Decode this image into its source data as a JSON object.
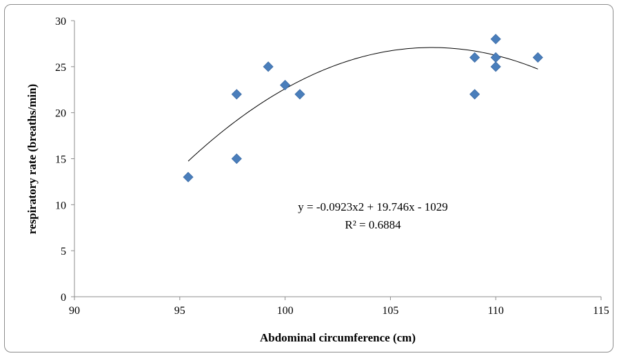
{
  "chart_data": {
    "type": "scatter",
    "title": "",
    "xlabel": "Abdominal circumference (cm)",
    "ylabel": "respiratory rate (breaths/min)",
    "xlim": [
      90,
      115
    ],
    "ylim": [
      0,
      30
    ],
    "x_ticks": [
      "90",
      "95",
      "100",
      "105",
      "110",
      "115"
    ],
    "y_ticks": [
      "0",
      "5",
      "10",
      "15",
      "20",
      "25",
      "30"
    ],
    "grid": false,
    "series": [
      {
        "marker": "diamond",
        "color": "#4a7ebb",
        "points": [
          {
            "x": 95.4,
            "y": 13
          },
          {
            "x": 97.7,
            "y": 22
          },
          {
            "x": 97.7,
            "y": 15
          },
          {
            "x": 99.2,
            "y": 25
          },
          {
            "x": 100.0,
            "y": 23
          },
          {
            "x": 100.7,
            "y": 22
          },
          {
            "x": 109.0,
            "y": 26
          },
          {
            "x": 109.0,
            "y": 22
          },
          {
            "x": 110.0,
            "y": 28
          },
          {
            "x": 110.0,
            "y": 26
          },
          {
            "x": 110.0,
            "y": 25
          },
          {
            "x": 112.0,
            "y": 26
          }
        ]
      }
    ],
    "trendline": {
      "type": "polynomial",
      "color": "#000000",
      "coefficients": {
        "a": -0.0923,
        "b": 19.746,
        "c": -1029
      },
      "x_range": [
        95.4,
        112.0
      ],
      "equation_label": "y = -0.0923x2 + 19.746x - 1029",
      "r2_label": "R² = 0.6884"
    }
  }
}
